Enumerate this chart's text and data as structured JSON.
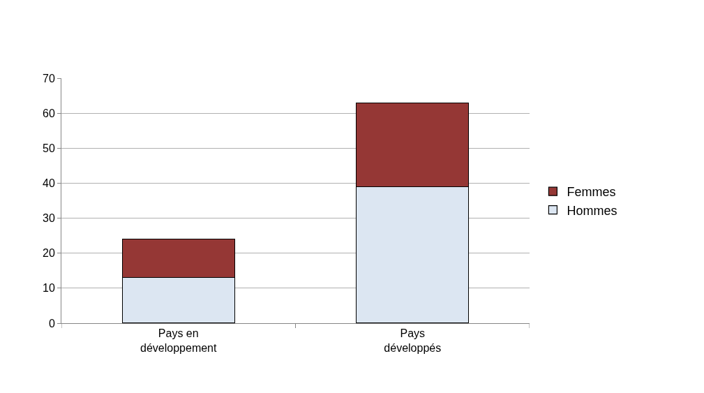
{
  "chart_data": {
    "type": "bar",
    "stacked": true,
    "categories": [
      "Pays en développement",
      "Pays développés"
    ],
    "series": [
      {
        "name": "Hommes",
        "color": "#dce6f2",
        "values": [
          13,
          39
        ]
      },
      {
        "name": "Femmes",
        "color": "#953735",
        "values": [
          11,
          24
        ]
      }
    ],
    "ylim": [
      0,
      70
    ],
    "yticks": [
      0,
      10,
      20,
      30,
      40,
      50,
      60,
      70
    ],
    "grid": "y",
    "legend": "right"
  }
}
